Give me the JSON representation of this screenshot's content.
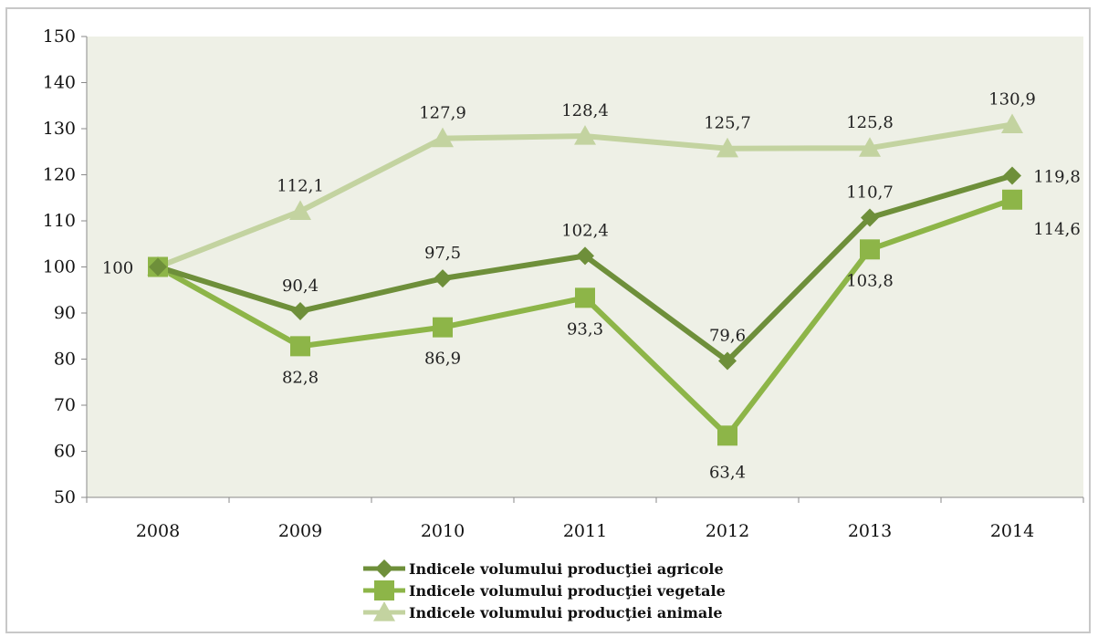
{
  "chart_data": {
    "type": "line",
    "categories": [
      "2008",
      "2009",
      "2010",
      "2011",
      "2012",
      "2013",
      "2014"
    ],
    "ylim": [
      50,
      150
    ],
    "yticks": [
      50,
      60,
      70,
      80,
      90,
      100,
      110,
      120,
      130,
      140,
      150
    ],
    "ytick_labels": [
      "50",
      "60",
      "70",
      "80",
      "90",
      "100",
      "110",
      "120",
      "130",
      "140",
      "150"
    ],
    "grid": false,
    "legend_position": "bottom",
    "plot_background": "#eef0e6",
    "series": [
      {
        "name": "Indicele volumului producţiei agricole",
        "values": [
          100,
          90.4,
          97.5,
          102.4,
          79.6,
          110.7,
          119.8
        ],
        "labels": [
          "",
          "90,4",
          "97,5",
          "102,4",
          "79,6",
          "110,7",
          "119,8"
        ],
        "color": "#6e8f3a",
        "marker": "diamond"
      },
      {
        "name": "Indicele volumului producţiei vegetale",
        "values": [
          100,
          82.8,
          86.9,
          93.3,
          63.4,
          103.8,
          114.6
        ],
        "labels": [
          "",
          "82,8",
          "86,9",
          "93,3",
          "63,4",
          "103,8",
          "114,6"
        ],
        "color": "#8db548",
        "marker": "square"
      },
      {
        "name": "Indicele volumului producţiei animale",
        "values": [
          100,
          112.1,
          127.9,
          128.4,
          125.7,
          125.8,
          130.9
        ],
        "labels": [
          "100",
          "112,1",
          "127,9",
          "128,4",
          "125,7",
          "125,8",
          "130,9"
        ],
        "color": "#c3d3a0",
        "marker": "triangle"
      }
    ]
  }
}
